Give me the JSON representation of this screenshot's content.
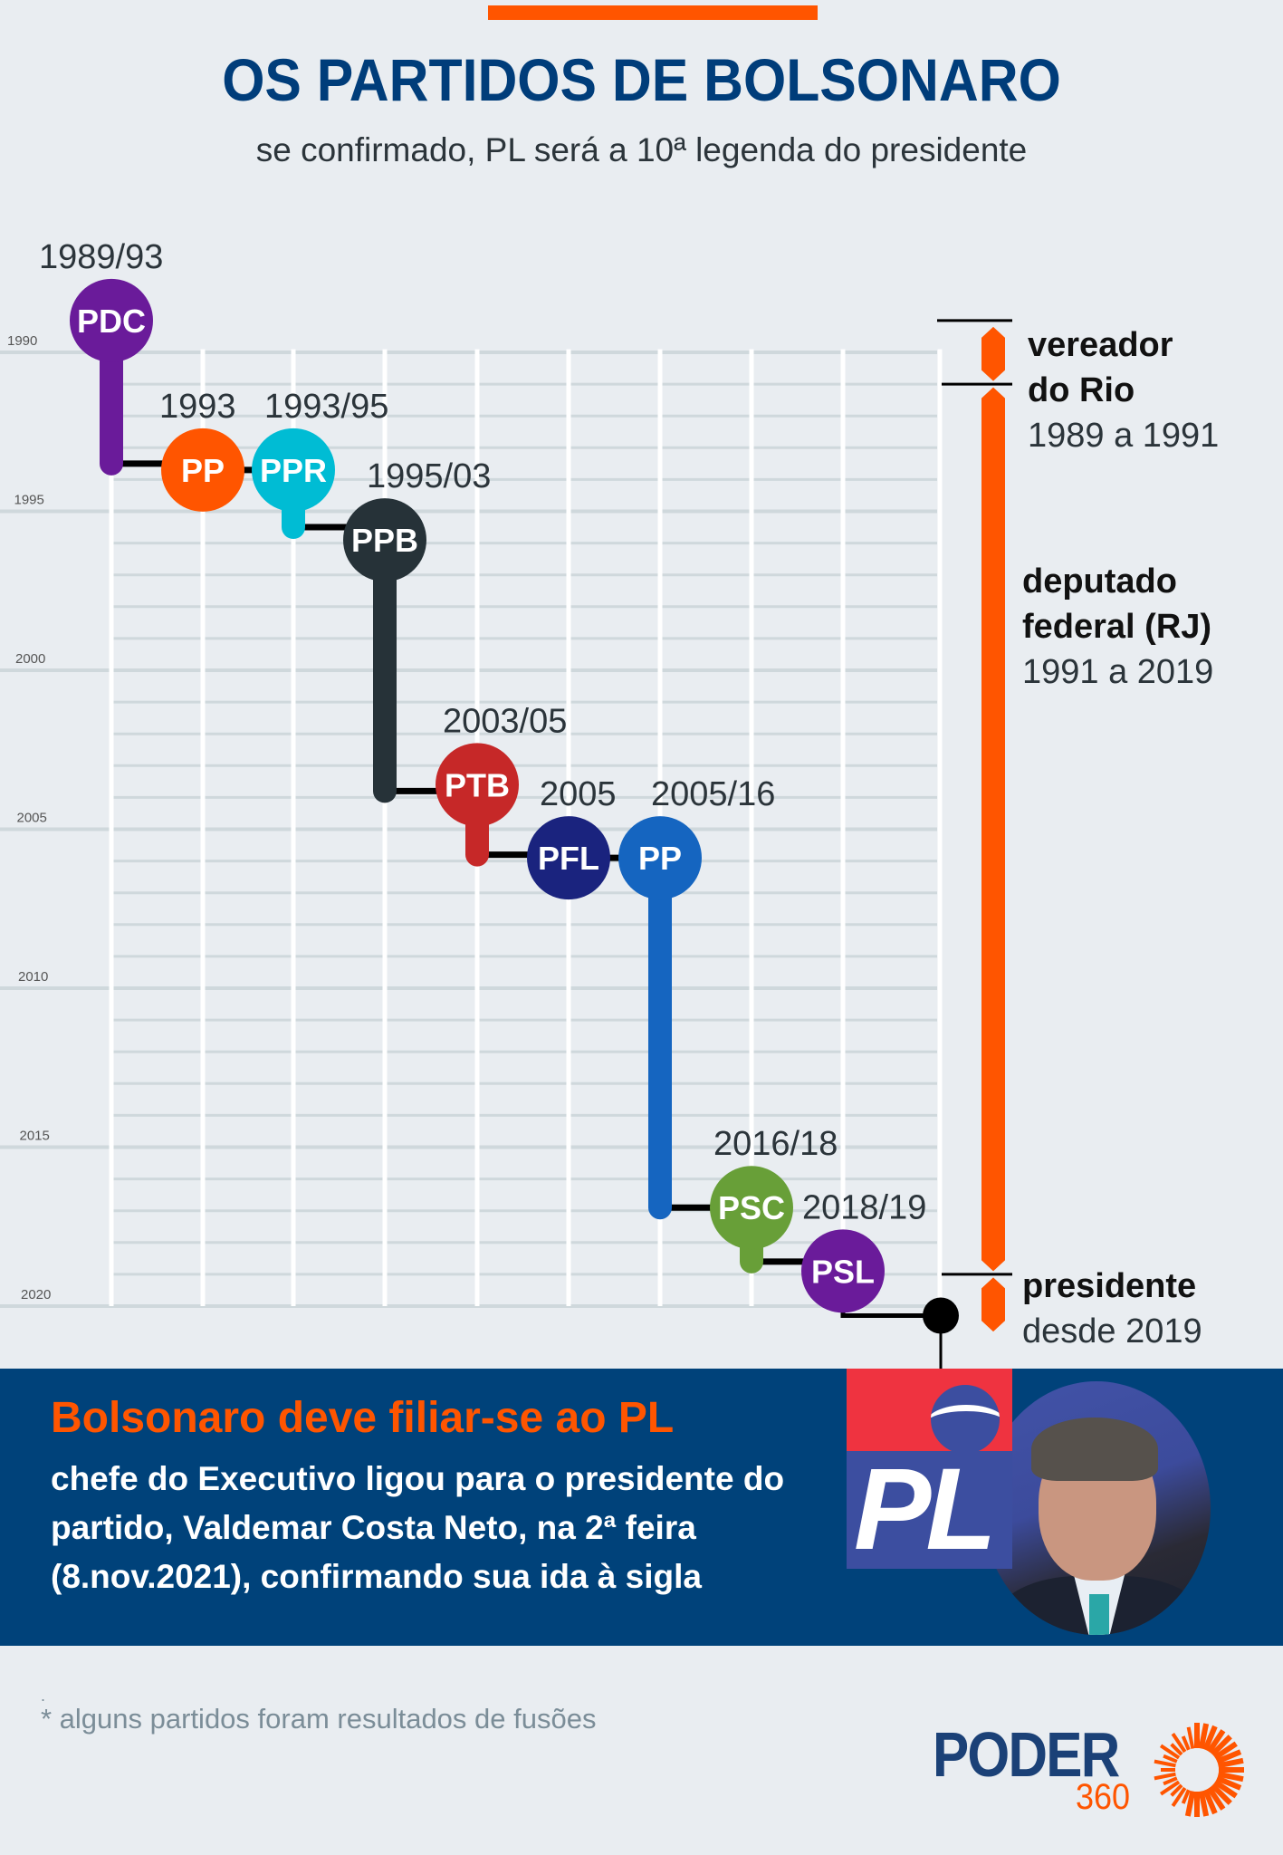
{
  "header": {
    "title": "OS PARTIDOS DE BOLSONARO",
    "subtitle": "se confirmado, PL será a 10ª legenda do presidente",
    "accent_color": "#ff5500"
  },
  "chart_data": {
    "type": "timeline",
    "title": "OS PARTIDOS DE BOLSONARO",
    "ylabel": "",
    "y_ticks": [
      "1990",
      "1995",
      "2000",
      "2005",
      "2010",
      "2015",
      "2020"
    ],
    "y_range": [
      1989,
      2021
    ],
    "grid": true,
    "parties": [
      {
        "name": "PDC",
        "period": "1989/93",
        "start": 1989,
        "end": 1993.3,
        "color": "#6a1b9a"
      },
      {
        "name": "PP",
        "period": "1993",
        "start": 1993.3,
        "end": 1993.3,
        "color": "#ff5500"
      },
      {
        "name": "PPR",
        "period": "1993/95",
        "start": 1993.3,
        "end": 1995.3,
        "color": "#00bcd4"
      },
      {
        "name": "PPB",
        "period": "1995/03",
        "start": 1995.3,
        "end": 2003.3,
        "color": "#263238"
      },
      {
        "name": "PTB",
        "period": "2003/05",
        "start": 2003.3,
        "end": 2005.3,
        "color": "#c62828"
      },
      {
        "name": "PFL",
        "period": "2005",
        "start": 2005.3,
        "end": 2005.3,
        "color": "#1a237e"
      },
      {
        "name": "PP",
        "period": "2005/16",
        "start": 2005.3,
        "end": 2016.3,
        "color": "#1565c0"
      },
      {
        "name": "PSC",
        "period": "2016/18",
        "start": 2016.3,
        "end": 2018.3,
        "color": "#689f38"
      },
      {
        "name": "PSL",
        "period": "2018/19",
        "start": 2018.3,
        "end": 2019.9,
        "color": "#6a1b9a"
      }
    ],
    "career": [
      {
        "role": "vereador do Rio",
        "role_lines": [
          "vereador",
          "do Rio"
        ],
        "period": "1989 a 1991",
        "start": 1989,
        "end": 1991
      },
      {
        "role": "deputado federal (RJ)",
        "role_lines": [
          "deputado",
          "federal (RJ)"
        ],
        "period": "1991 a 2019",
        "start": 1991,
        "end": 2019
      },
      {
        "role": "presidente",
        "role_lines": [
          "presidente"
        ],
        "period": "desde 2019",
        "start": 2019,
        "end": 2021
      }
    ],
    "career_color": "#ff5500"
  },
  "banner": {
    "title": "Bolsonaro deve filiar-se ao PL",
    "text": "chefe do Executivo ligou para o presidente do partido, Valdemar Costa Neto, na 2ª feira (8.nov.2021), confirmando sua ida à sigla",
    "logo_text": "PL"
  },
  "footer": {
    "dot": ".",
    "footnote": "* alguns partidos foram resultados de fusões",
    "brand": "PODER",
    "brand_number": "360"
  }
}
